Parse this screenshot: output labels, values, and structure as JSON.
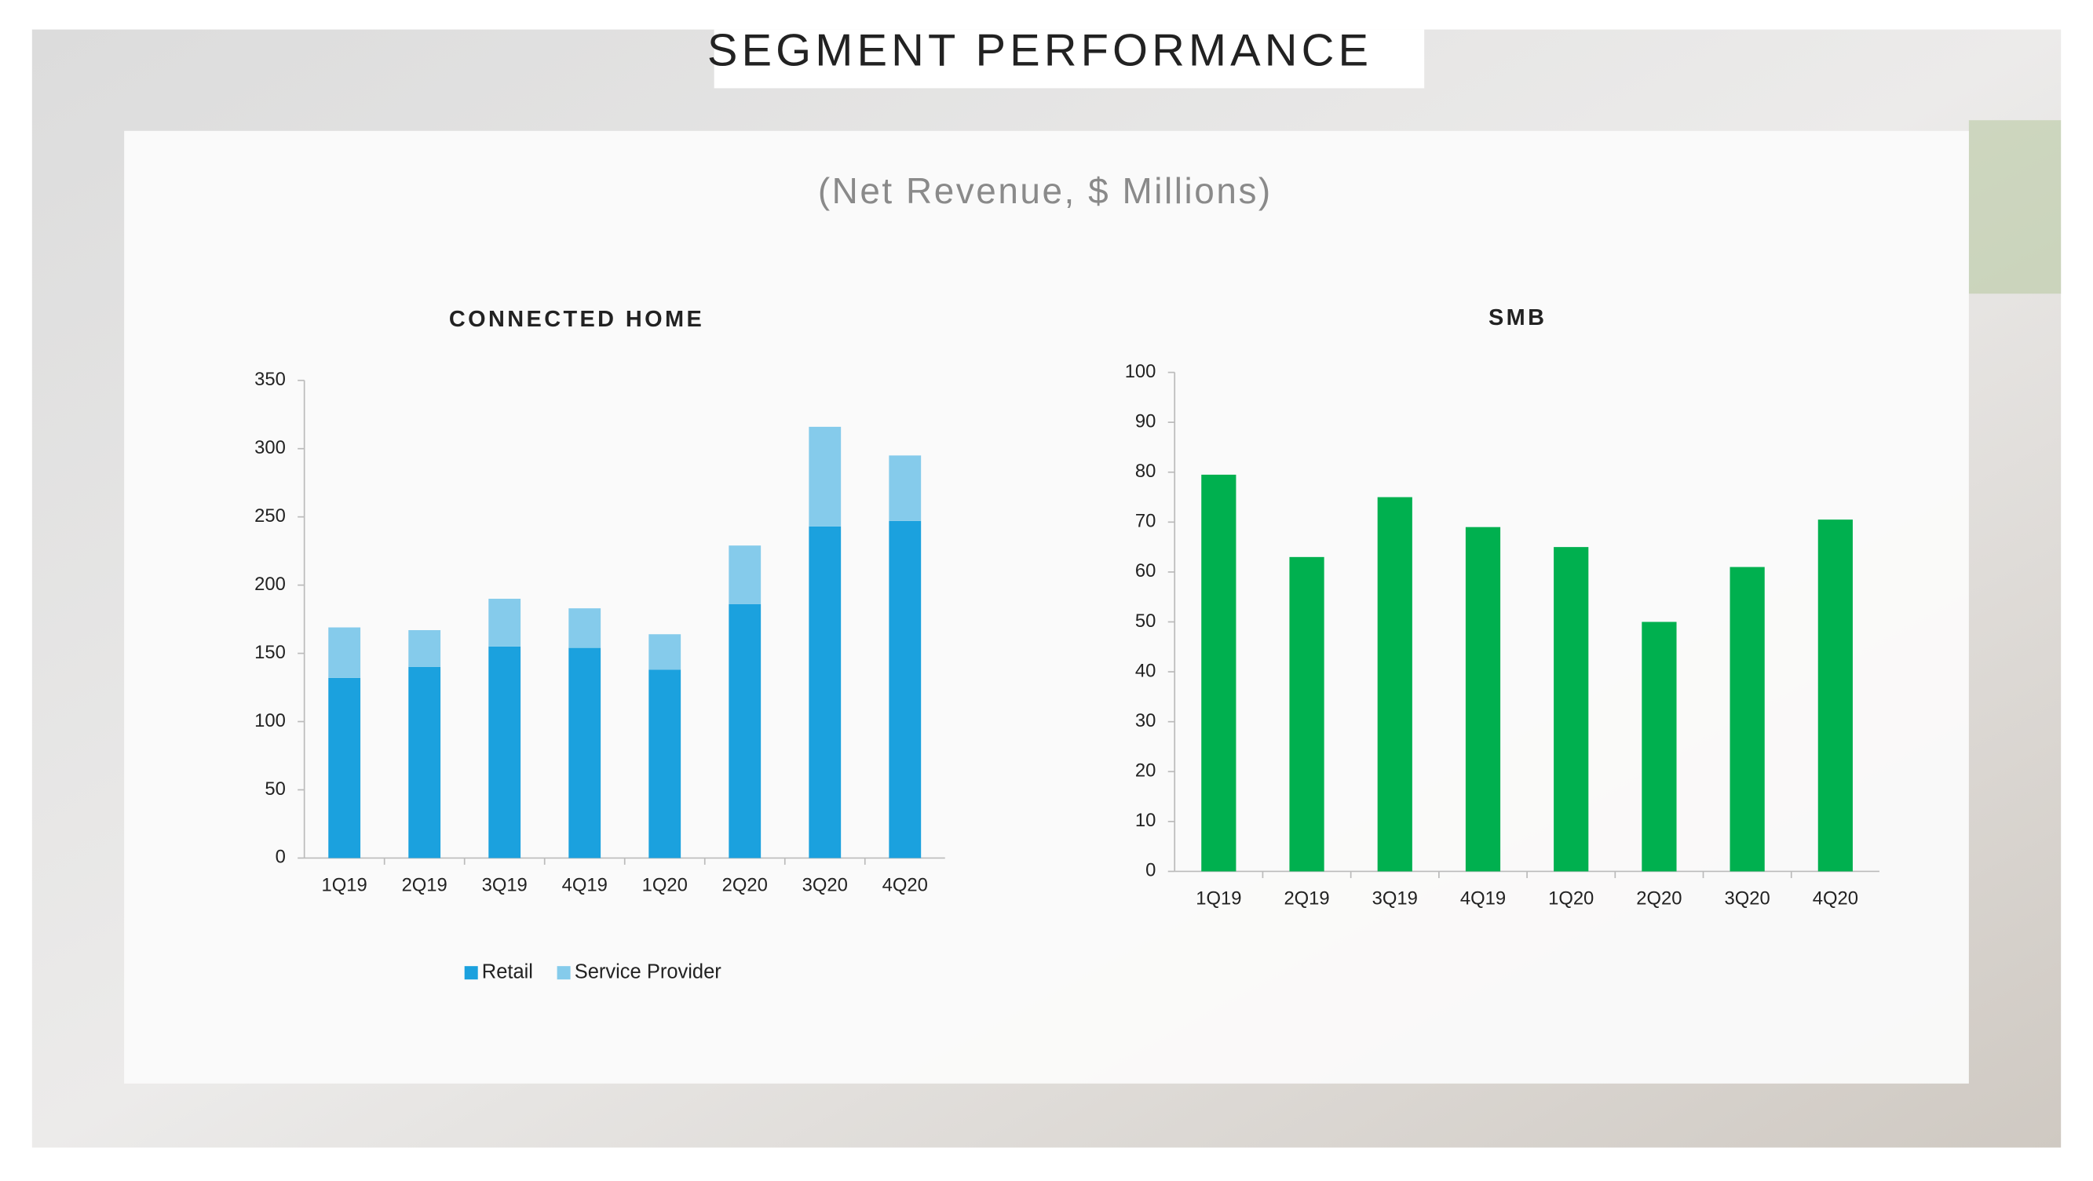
{
  "header": {
    "title": "SEGMENT PERFORMANCE",
    "subtitle": "(Net Revenue, $ Millions)"
  },
  "chart_data": [
    {
      "type": "bar",
      "title": "CONNECTED HOME",
      "stacked": true,
      "legend": "bottom",
      "categories": [
        "1Q19",
        "2Q19",
        "3Q19",
        "4Q19",
        "1Q20",
        "2Q20",
        "3Q20",
        "4Q20"
      ],
      "series": [
        {
          "name": "Retail",
          "color": "#1ba1de",
          "values": [
            132,
            140,
            155,
            154,
            138,
            186,
            243,
            247
          ]
        },
        {
          "name": "Service Provider",
          "color": "#85cbeb",
          "values": [
            37,
            27,
            35,
            29,
            26,
            43,
            73,
            48
          ]
        }
      ],
      "ylim": [
        0,
        350
      ],
      "yticks": [
        0,
        50,
        100,
        150,
        200,
        250,
        300,
        350
      ],
      "grid": false
    },
    {
      "type": "bar",
      "title": "SMB",
      "color": "#00b04f",
      "categories": [
        "1Q19",
        "2Q19",
        "3Q19",
        "4Q19",
        "1Q20",
        "2Q20",
        "3Q20",
        "4Q20"
      ],
      "values": [
        79.5,
        63,
        75,
        69,
        65,
        50,
        61,
        70.5
      ],
      "ylim": [
        0,
        100
      ],
      "yticks": [
        0,
        10,
        20,
        30,
        40,
        50,
        60,
        70,
        80,
        90,
        100
      ],
      "grid": false
    }
  ]
}
